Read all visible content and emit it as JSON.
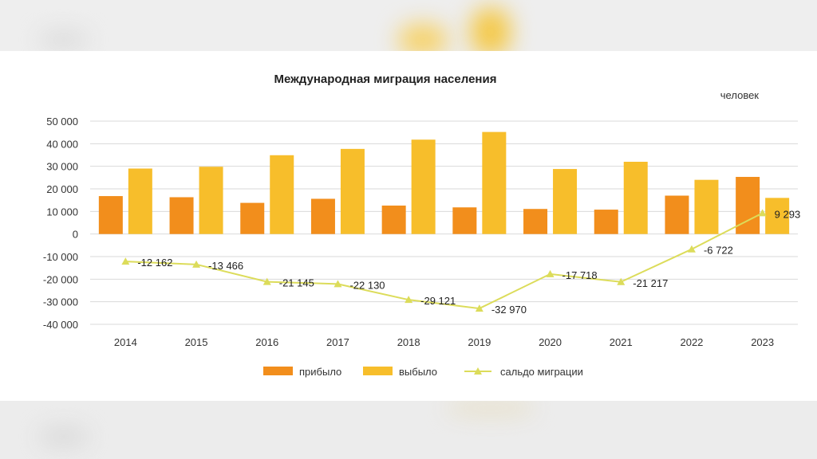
{
  "chart_data": {
    "type": "bar",
    "title": "Международная миграция населения",
    "unit_label": "человек",
    "categories": [
      "2014",
      "2015",
      "2016",
      "2017",
      "2018",
      "2019",
      "2020",
      "2021",
      "2022",
      "2023"
    ],
    "series": [
      {
        "name": "прибыло",
        "type": "bar",
        "color": "#F28E1C",
        "values": [
          16800,
          16300,
          13800,
          15600,
          12600,
          11800,
          11100,
          10800,
          17000,
          25300
        ]
      },
      {
        "name": "выбыло",
        "type": "bar",
        "color": "#F7BE2B",
        "values": [
          29000,
          29800,
          34900,
          37700,
          41800,
          45200,
          28800,
          32000,
          24000,
          16000
        ]
      },
      {
        "name": "сальдо миграции",
        "type": "line",
        "color": "#DCDC5A",
        "values": [
          -12162,
          -13466,
          -21145,
          -22130,
          -29121,
          -32970,
          -17718,
          -21217,
          -6722,
          9293
        ],
        "labels": [
          "-12 162",
          "-13 466",
          "-21 145",
          "-22 130",
          "-29 121",
          "-32 970",
          "-17 718",
          "-21 217",
          "-6 722",
          "9 293"
        ]
      }
    ],
    "ylim": [
      -40000,
      50000
    ],
    "yticks": [
      50000,
      40000,
      30000,
      20000,
      10000,
      0,
      -10000,
      -20000,
      -30000,
      -40000
    ],
    "ytick_labels": [
      "50 000",
      "40 000",
      "30 000",
      "20 000",
      "10 000",
      "0",
      "-10 000",
      "-20 000",
      "-30 000",
      "-40 000"
    ],
    "grid": true,
    "legend_position": "bottom"
  }
}
